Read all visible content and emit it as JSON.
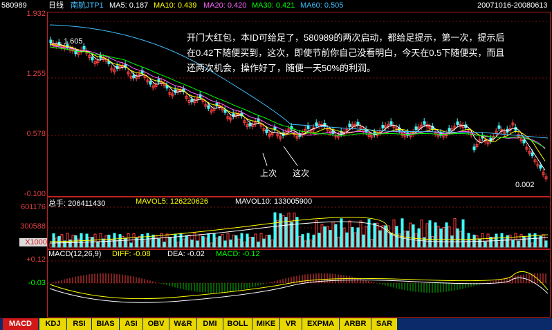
{
  "header": {
    "code": "580989",
    "period": "日线",
    "name": "南航JTP1",
    "ma5": "MA5: 0.187",
    "ma10": "MA10: 0.439",
    "ma20": "MA20: 0.420",
    "ma30": "MA30: 0.421",
    "ma60": "MA60: 0.505",
    "date_range": "20071016-20080613"
  },
  "price_axis": [
    "1.932",
    "1.255",
    "0.578",
    "-0.100"
  ],
  "price_markers": {
    "high": "1.605",
    "low": "0.002"
  },
  "annotation": "开门大红包，本ID可给足了，580989的两次启动，都给足提示，第一次，提示后在0.42下随便买到，这次，即使节前你自己没看明白，今天在0.5下随便买，而且还两次机会，操作好了，随便一天50%的利润。",
  "callouts": {
    "first": "上次",
    "second": "这次"
  },
  "volume": {
    "total": "总手: 206411430",
    "mavol5": "MAVOL5: 126220626",
    "mavol10": "MAVOL10: 133005900",
    "axis": [
      "601176",
      "300588",
      "X1000"
    ]
  },
  "macd": {
    "title": "MACD(12,26,9)",
    "diff": "DIFF: -0.08",
    "dea": "DEA: -0.02",
    "macd": "MACD: -0.12",
    "axis": [
      "+0.12",
      "-0.03"
    ]
  },
  "tabs": [
    "MACD",
    "KDJ",
    "RSI",
    "BIAS",
    "ASI",
    "OBV",
    "W&R",
    "DMI",
    "BOLL",
    "MIKE",
    "VR",
    "EXPMA",
    "ARBR",
    "SAR"
  ],
  "colors": {
    "ma5": "#ffffff",
    "ma10": "#ffff00",
    "ma20": "#ff66ff",
    "ma30": "#00ff00",
    "ma60": "#40c0ff",
    "up": "#ff4040",
    "down": "#40ffff",
    "axis": "#c02020"
  }
}
